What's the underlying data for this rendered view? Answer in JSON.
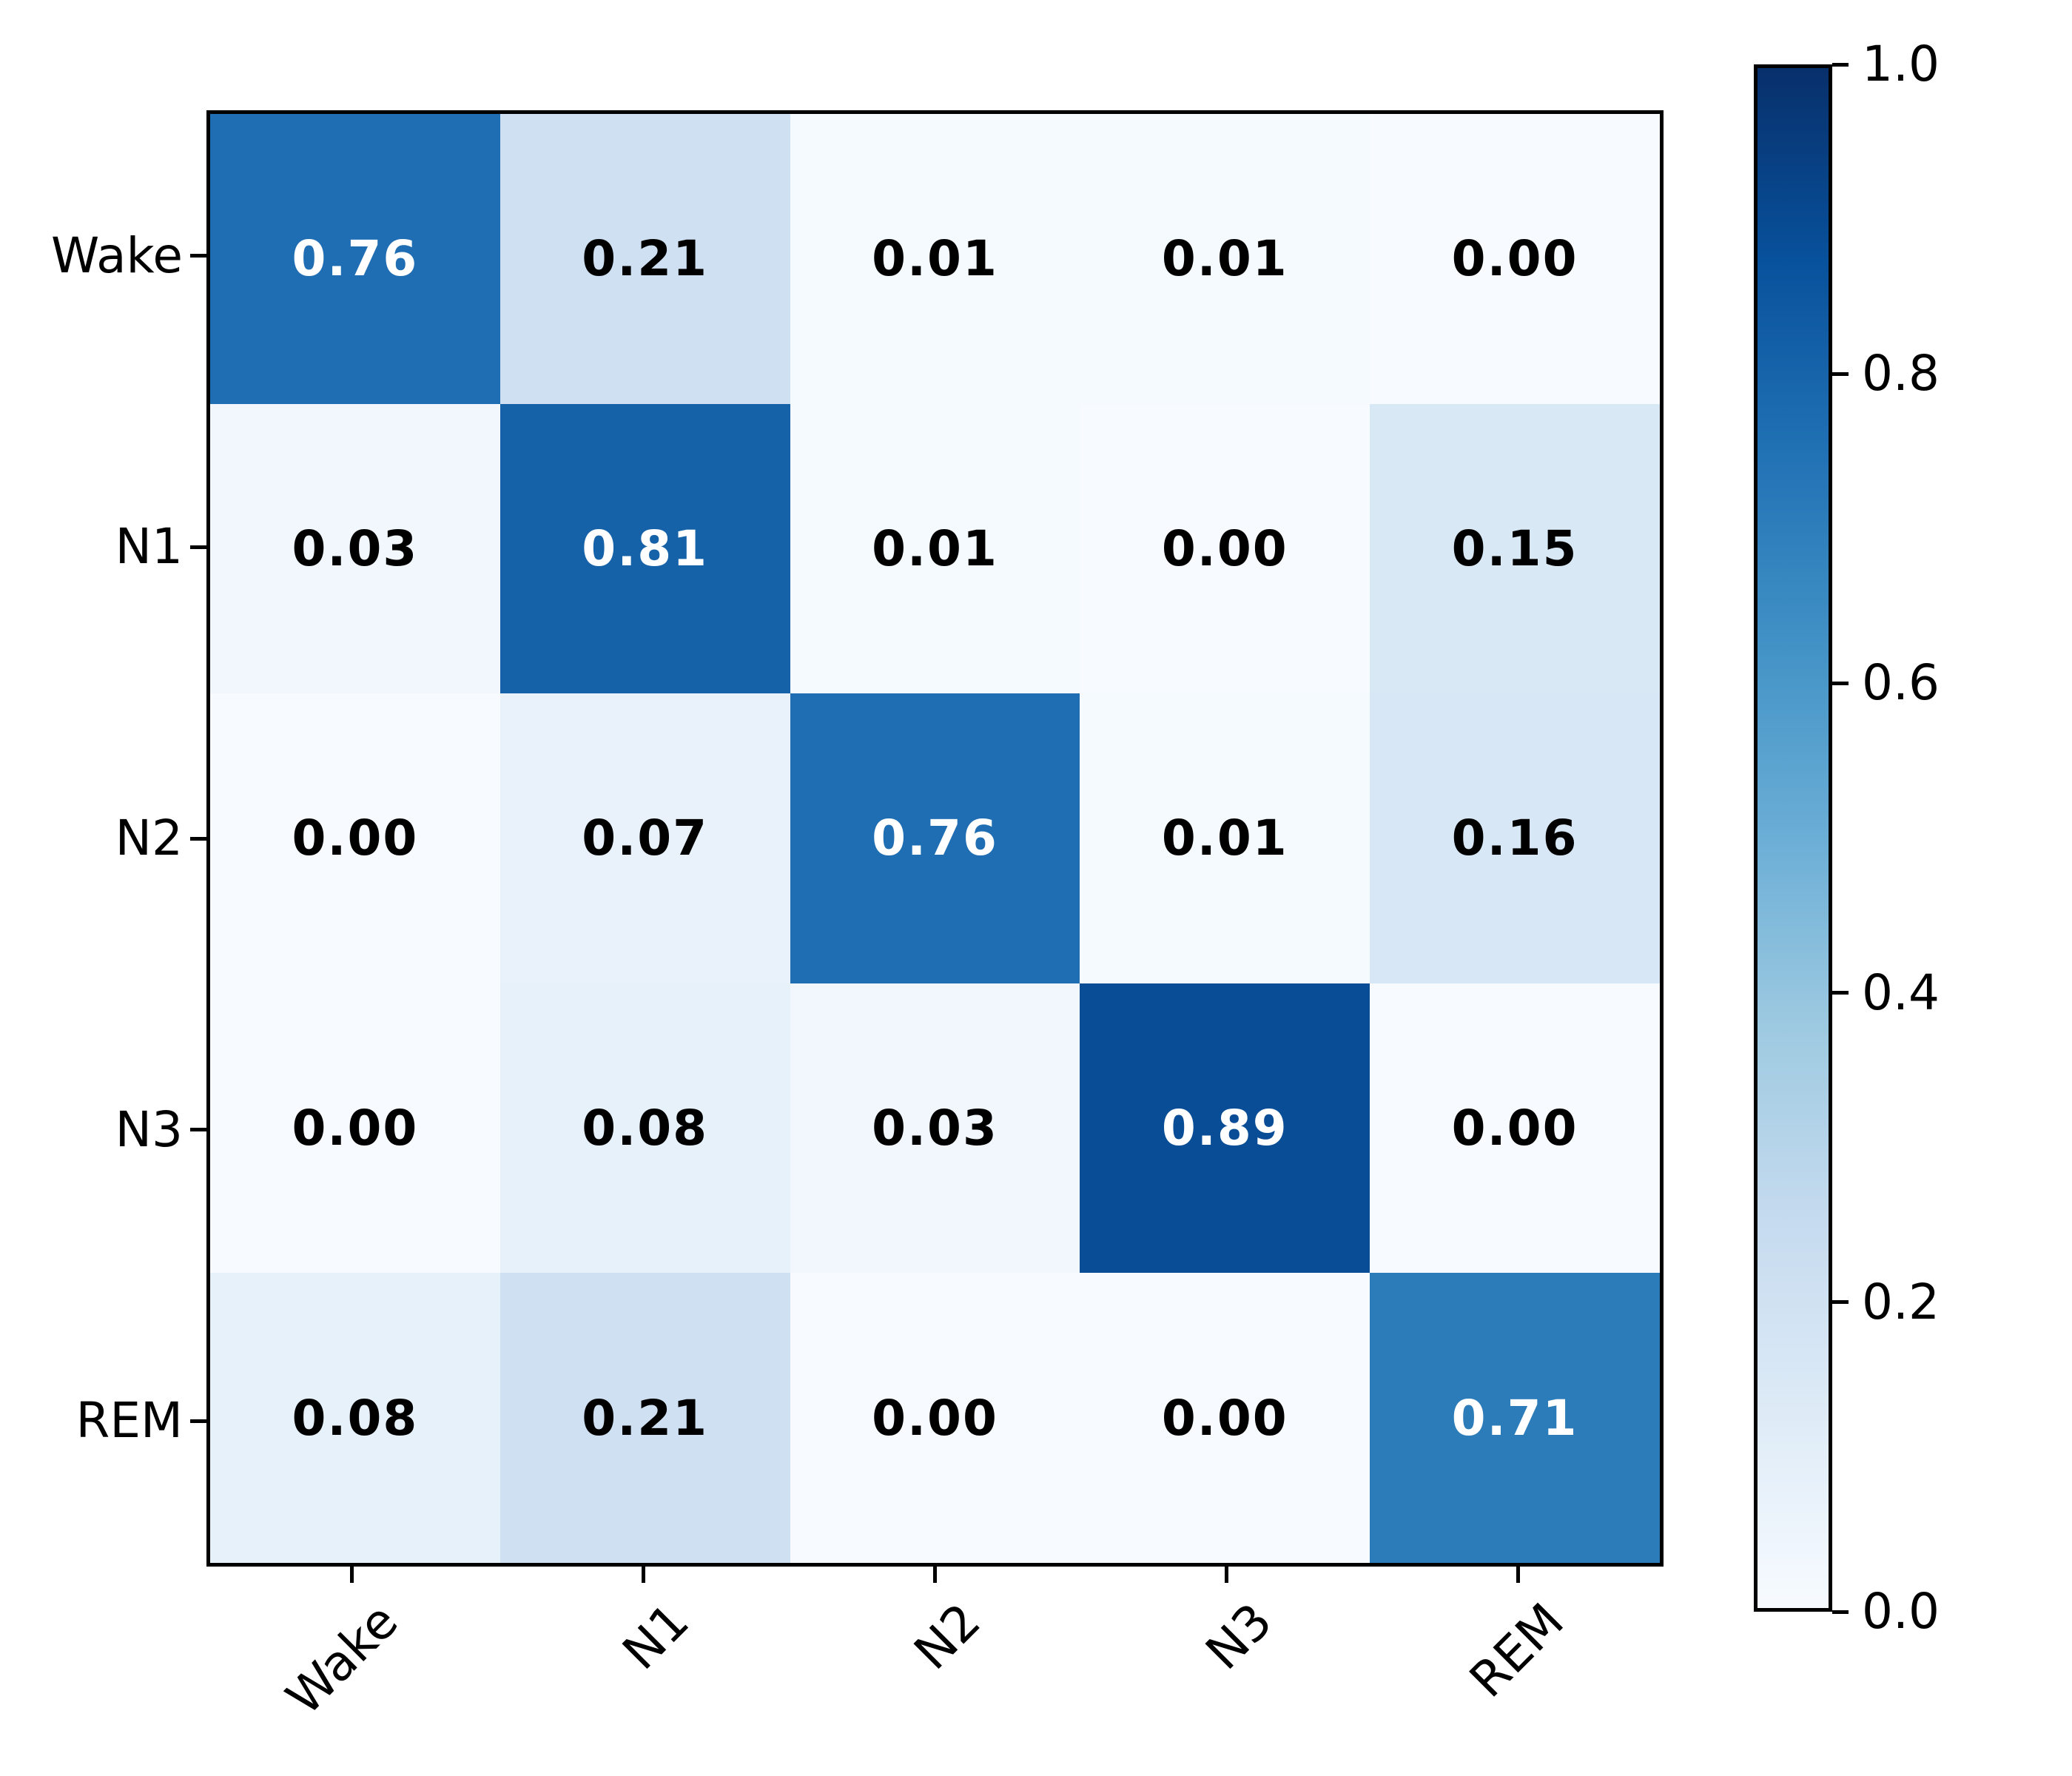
{
  "chart_data": {
    "type": "heatmap",
    "subtype": "confusion-matrix",
    "title": "",
    "xlabel": "",
    "ylabel": "",
    "x_tick_labels": [
      "Wake",
      "N1",
      "N2",
      "N3",
      "REM"
    ],
    "y_tick_labels": [
      "Wake",
      "N1",
      "N2",
      "N3",
      "REM"
    ],
    "matrix": [
      [
        0.76,
        0.21,
        0.01,
        0.01,
        0.0
      ],
      [
        0.03,
        0.81,
        0.01,
        0.0,
        0.15
      ],
      [
        0.0,
        0.07,
        0.76,
        0.01,
        0.16
      ],
      [
        0.0,
        0.08,
        0.03,
        0.89,
        0.0
      ],
      [
        0.08,
        0.21,
        0.0,
        0.0,
        0.71
      ]
    ],
    "value_decimals": 2,
    "vmin": 0.0,
    "vmax": 1.0,
    "colormap": "Blues",
    "colormap_anchors": [
      "#f7fbff",
      "#deebf7",
      "#c6dbef",
      "#9ecae1",
      "#6baed6",
      "#4292c6",
      "#2171b5",
      "#08519c",
      "#08306b"
    ],
    "x_tick_rotation_deg": 45,
    "grid": false,
    "legend": false,
    "colorbar": {
      "position": "right",
      "tick_labels": [
        "1.0",
        "0.8",
        "0.6",
        "0.4",
        "0.2",
        "0.0"
      ],
      "tick_values": [
        1.0,
        0.8,
        0.6,
        0.4,
        0.2,
        0.0
      ]
    },
    "colors": {
      "background": "#ffffff",
      "spine": "#000000",
      "text_on_dark_cells": "#ffffff",
      "text_on_light_cells": "#000000"
    }
  }
}
